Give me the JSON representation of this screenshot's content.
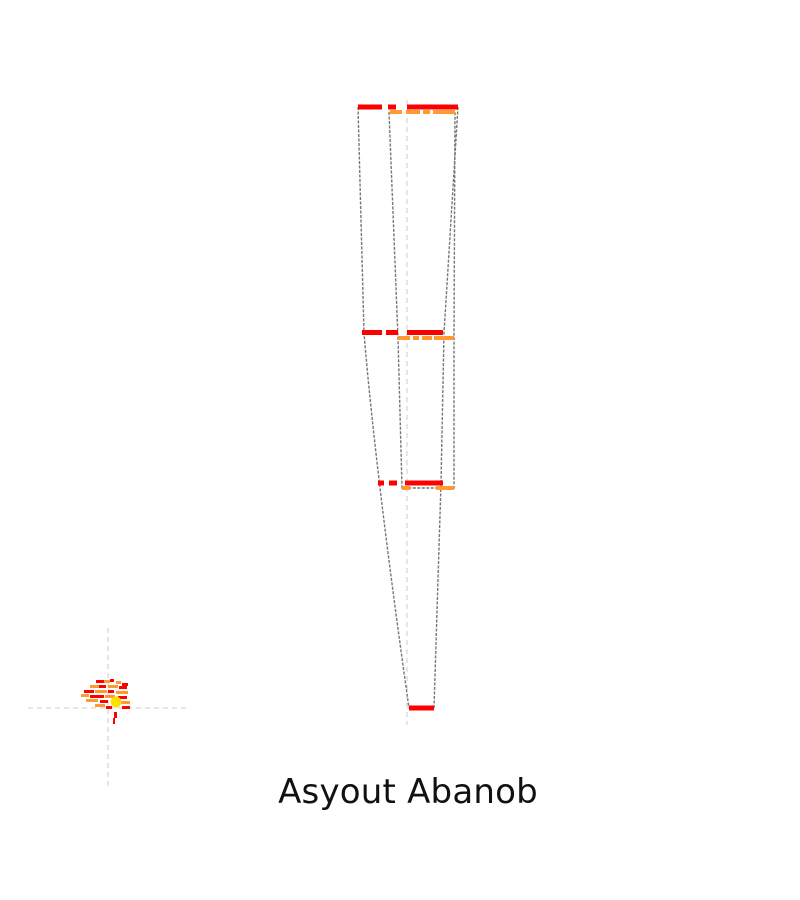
{
  "caption": "Asyout Abanob",
  "colors": {
    "primary": "#ff0000",
    "secondary": "#ff9a30",
    "highlight": "#ffe000",
    "outline": "#777777",
    "guide": "#cccccc"
  }
}
